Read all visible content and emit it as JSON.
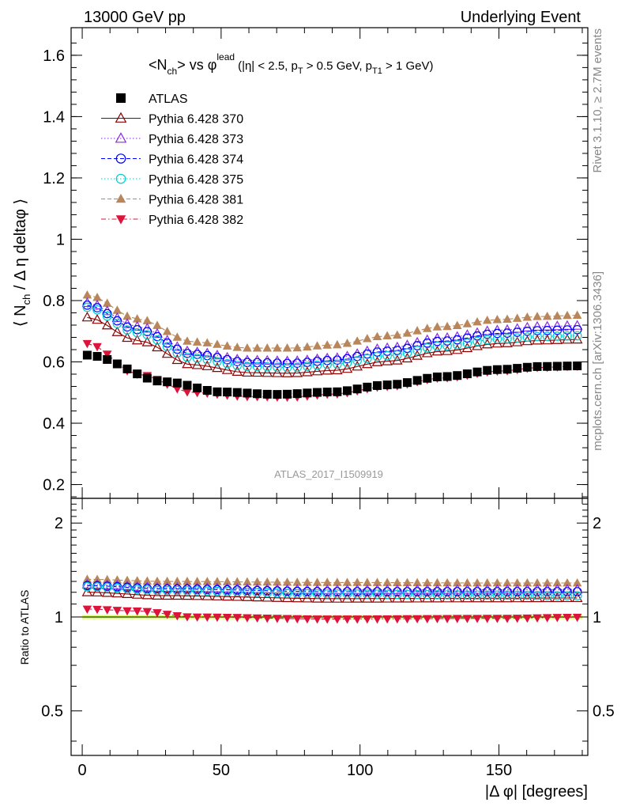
{
  "header": {
    "left": "13000 GeV pp",
    "right": "Underlying Event"
  },
  "side_text": {
    "top": "Rivet 3.1.10, ≥ 2.7M events",
    "bottom": "mcplots.cern.ch [arXiv:1306.3436]"
  },
  "chart_data": [
    {
      "type": "scatter",
      "title": "<N_ch> vs φ^lead (|η| < 2.5, p_T > 0.5 GeV, p_T1 > 1 GeV)",
      "title_parts": {
        "main": "<N",
        "main_sub": "ch",
        "main_mid": "> vs φ",
        "main_sup": "lead",
        "cut1": "(|η| < 2.5, p",
        "cut1_sub": "T",
        "cut2": " > 0.5 GeV, p",
        "cut2_sub": "T1",
        "cut3": " > 1 GeV)"
      },
      "ylabel": "⟨ N_ch / Δ η deltaφ ⟩",
      "ylabel_parts": {
        "a": "⟨ N",
        "sub": "ch",
        "b": " / Δ η deltaφ ⟩"
      },
      "watermark": "ATLAS_2017_I1509919",
      "xlim": [
        -4,
        182
      ],
      "ylim": [
        0.155,
        1.69
      ],
      "yticks": [
        0.2,
        0.4,
        0.6,
        0.8,
        1,
        1.2,
        1.4,
        1.6
      ],
      "ytick_labels": [
        "0.2",
        "0.4",
        "0.6",
        "0.8",
        "1",
        "1.2",
        "1.4",
        "1.6"
      ],
      "legend_position": "top-left",
      "series": [
        {
          "name": "ATLAS",
          "color": "#000000",
          "marker": "square-filled",
          "line": "none",
          "points": [
            [
              1.8,
              0.622
            ],
            [
              30,
              0.535
            ],
            [
              50,
              0.502
            ],
            [
              70,
              0.494
            ],
            [
              90,
              0.502
            ],
            [
              110,
              0.525
            ],
            [
              130,
              0.552
            ],
            [
              150,
              0.575
            ],
            [
              165,
              0.585
            ],
            [
              178.2,
              0.587
            ]
          ]
        },
        {
          "name": "Pythia 6.428 370",
          "color": "#8b0000",
          "marker": "triangle-open",
          "line": "solid",
          "points": [
            [
              1.8,
              0.745
            ],
            [
              20,
              0.67
            ],
            [
              40,
              0.59
            ],
            [
              60,
              0.565
            ],
            [
              75,
              0.563
            ],
            [
              90,
              0.572
            ],
            [
              110,
              0.602
            ],
            [
              130,
              0.635
            ],
            [
              150,
              0.66
            ],
            [
              165,
              0.67
            ],
            [
              178.2,
              0.673
            ]
          ]
        },
        {
          "name": "Pythia 6.428 373",
          "color": "#8a2be2",
          "marker": "triangle-open",
          "line": "dotted",
          "points": [
            [
              1.8,
              0.792
            ],
            [
              20,
              0.715
            ],
            [
              40,
              0.632
            ],
            [
              60,
              0.605
            ],
            [
              75,
              0.602
            ],
            [
              90,
              0.612
            ],
            [
              110,
              0.645
            ],
            [
              130,
              0.678
            ],
            [
              150,
              0.703
            ],
            [
              165,
              0.715
            ],
            [
              178.2,
              0.718
            ]
          ]
        },
        {
          "name": "Pythia 6.428 374",
          "color": "#0000ff",
          "marker": "circle-open",
          "line": "dashed",
          "points": [
            [
              1.8,
              0.785
            ],
            [
              20,
              0.705
            ],
            [
              40,
              0.625
            ],
            [
              60,
              0.598
            ],
            [
              75,
              0.595
            ],
            [
              90,
              0.605
            ],
            [
              110,
              0.635
            ],
            [
              130,
              0.668
            ],
            [
              150,
              0.693
            ],
            [
              165,
              0.702
            ],
            [
              178.2,
              0.705
            ]
          ]
        },
        {
          "name": "Pythia 6.428 375",
          "color": "#00ced1",
          "marker": "circle-open",
          "line": "dotted",
          "points": [
            [
              1.8,
              0.778
            ],
            [
              20,
              0.695
            ],
            [
              40,
              0.612
            ],
            [
              60,
              0.585
            ],
            [
              75,
              0.582
            ],
            [
              90,
              0.592
            ],
            [
              110,
              0.62
            ],
            [
              130,
              0.652
            ],
            [
              150,
              0.675
            ],
            [
              165,
              0.683
            ],
            [
              178.2,
              0.685
            ]
          ]
        },
        {
          "name": "Pythia 6.428 381",
          "color": "#b8865a",
          "marker": "triangle-filled",
          "line": "dashed",
          "points": [
            [
              1.8,
              0.818
            ],
            [
              20,
              0.74
            ],
            [
              40,
              0.665
            ],
            [
              60,
              0.645
            ],
            [
              75,
              0.645
            ],
            [
              90,
              0.655
            ],
            [
              110,
              0.685
            ],
            [
              130,
              0.715
            ],
            [
              150,
              0.738
            ],
            [
              165,
              0.748
            ],
            [
              178.2,
              0.752
            ]
          ]
        },
        {
          "name": "Pythia 6.428 382",
          "color": "#dc143c",
          "marker": "triangle-down-filled",
          "line": "dashdot",
          "points": [
            [
              1.8,
              0.66
            ],
            [
              20,
              0.56
            ],
            [
              40,
              0.5
            ],
            [
              60,
              0.487
            ],
            [
              75,
              0.485
            ],
            [
              90,
              0.495
            ],
            [
              110,
              0.52
            ],
            [
              130,
              0.548
            ],
            [
              150,
              0.57
            ],
            [
              165,
              0.582
            ],
            [
              178.2,
              0.586
            ]
          ]
        }
      ]
    },
    {
      "type": "scatter",
      "ylabel": "Ratio to ATLAS",
      "xlabel": "|Δ φ| [degrees]",
      "xlim": [
        -4,
        182
      ],
      "ylim": [
        0.36,
        2.4
      ],
      "log_y": true,
      "xticks": [
        0,
        50,
        100,
        150
      ],
      "xtick_labels": [
        "0",
        "50",
        "100",
        "150"
      ],
      "yticks": [
        0.5,
        1,
        2
      ],
      "ytick_labels": [
        "0.5",
        "1",
        "2"
      ],
      "band": {
        "low": 0.985,
        "high": 1.015,
        "color": "#d8ff66"
      },
      "series": [
        {
          "name": "Pythia 6.428 370",
          "values": [
            [
              1.8,
              1.2
            ],
            [
              30,
              1.17
            ],
            [
              90,
              1.145
            ],
            [
              150,
              1.148
            ],
            [
              178.2,
              1.15
            ]
          ]
        },
        {
          "name": "Pythia 6.428 373",
          "values": [
            [
              1.8,
              1.27
            ],
            [
              30,
              1.24
            ],
            [
              90,
              1.22
            ],
            [
              150,
              1.222
            ],
            [
              178.2,
              1.225
            ]
          ]
        },
        {
          "name": "Pythia 6.428 374",
          "values": [
            [
              1.8,
              1.26
            ],
            [
              30,
              1.23
            ],
            [
              90,
              1.205
            ],
            [
              150,
              1.205
            ],
            [
              178.2,
              1.205
            ]
          ]
        },
        {
          "name": "Pythia 6.428 375",
          "values": [
            [
              1.8,
              1.25
            ],
            [
              30,
              1.215
            ],
            [
              90,
              1.185
            ],
            [
              150,
              1.175
            ],
            [
              178.2,
              1.17
            ]
          ]
        },
        {
          "name": "Pythia 6.428 381",
          "values": [
            [
              1.8,
              1.32
            ],
            [
              30,
              1.3
            ],
            [
              90,
              1.29
            ],
            [
              150,
              1.285
            ],
            [
              178.2,
              1.285
            ]
          ]
        },
        {
          "name": "Pythia 6.428 382",
          "values": [
            [
              1.8,
              1.06
            ],
            [
              20,
              1.045
            ],
            [
              40,
              1.0
            ],
            [
              90,
              0.985
            ],
            [
              150,
              0.99
            ],
            [
              178.2,
              0.998
            ]
          ]
        }
      ]
    }
  ]
}
